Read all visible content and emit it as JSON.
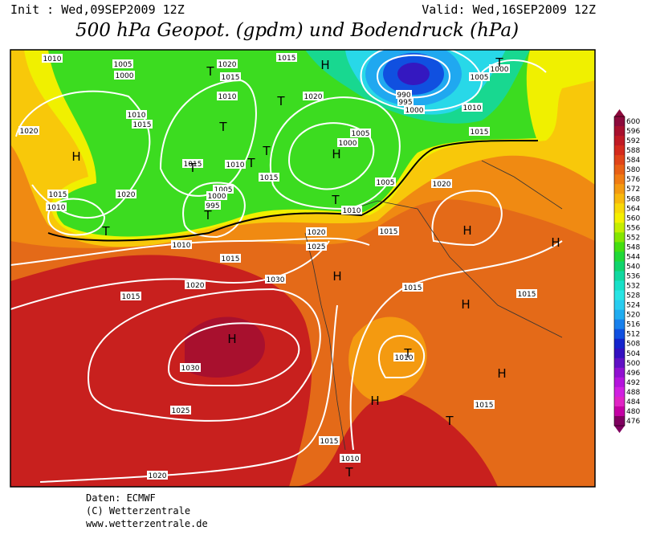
{
  "header": {
    "init": "Init : Wed,09SEP2009 12Z",
    "valid": "Valid: Wed,16SEP2009 12Z",
    "title": "500 hPa Geopot. (gpdm) und Bodendruck (hPa)"
  },
  "colorbar": {
    "levels": [
      {
        "label": "600",
        "color": "#8c0a3c"
      },
      {
        "label": "596",
        "color": "#a8102e"
      },
      {
        "label": "592",
        "color": "#c01a24"
      },
      {
        "label": "588",
        "color": "#d42a1c"
      },
      {
        "label": "584",
        "color": "#e04418"
      },
      {
        "label": "580",
        "color": "#e86014"
      },
      {
        "label": "576",
        "color": "#f07c12"
      },
      {
        "label": "572",
        "color": "#f49a10"
      },
      {
        "label": "568",
        "color": "#f8b80c"
      },
      {
        "label": "564",
        "color": "#f8d808"
      },
      {
        "label": "560",
        "color": "#f4f000"
      },
      {
        "label": "556",
        "color": "#c4ee00"
      },
      {
        "label": "552",
        "color": "#84e600"
      },
      {
        "label": "548",
        "color": "#44de10"
      },
      {
        "label": "544",
        "color": "#20d838"
      },
      {
        "label": "540",
        "color": "#10d46c"
      },
      {
        "label": "536",
        "color": "#10d8a0"
      },
      {
        "label": "532",
        "color": "#18e0c8"
      },
      {
        "label": "528",
        "color": "#28e4e4"
      },
      {
        "label": "524",
        "color": "#28ccf0"
      },
      {
        "label": "520",
        "color": "#20acf0"
      },
      {
        "label": "516",
        "color": "#1880ec"
      },
      {
        "label": "512",
        "color": "#1050e0"
      },
      {
        "label": "508",
        "color": "#1424cc"
      },
      {
        "label": "504",
        "color": "#3410c0"
      },
      {
        "label": "500",
        "color": "#6010c4"
      },
      {
        "label": "496",
        "color": "#9010d0"
      },
      {
        "label": "492",
        "color": "#b414dc"
      },
      {
        "label": "488",
        "color": "#d020e0"
      },
      {
        "label": "484",
        "color": "#e024c4"
      },
      {
        "label": "480",
        "color": "#c400a4"
      },
      {
        "label": "476",
        "color": "#800060"
      }
    ]
  },
  "map": {
    "isobar_labels": [
      "1010",
      "1005",
      "1000",
      "1010",
      "1015",
      "1020",
      "1015",
      "1010",
      "1020",
      "1020",
      "1015",
      "1010",
      "1015",
      "1010",
      "1005",
      "1000",
      "995",
      "1015",
      "1015",
      "1020",
      "1005",
      "1000",
      "1005",
      "1010",
      "1015",
      "1020",
      "1025",
      "1010",
      "1015",
      "1020",
      "1015",
      "1030",
      "1030",
      "1025",
      "1020",
      "1015",
      "1010",
      "1015",
      "1010",
      "1015",
      "1015",
      "1020",
      "1005",
      "1000",
      "1010",
      "1015",
      "990",
      "995",
      "1000"
    ],
    "centers": [
      "H",
      "T",
      "T",
      "T",
      "T",
      "T",
      "T",
      "T",
      "H",
      "T",
      "T",
      "T",
      "H",
      "H",
      "H",
      "H",
      "H",
      "H",
      "T",
      "H",
      "H",
      "T",
      "T"
    ]
  },
  "footer": {
    "lines": [
      "Daten: ECMWF",
      "(C) Wetterzentrale",
      "www.wetterzentrale.de"
    ]
  }
}
